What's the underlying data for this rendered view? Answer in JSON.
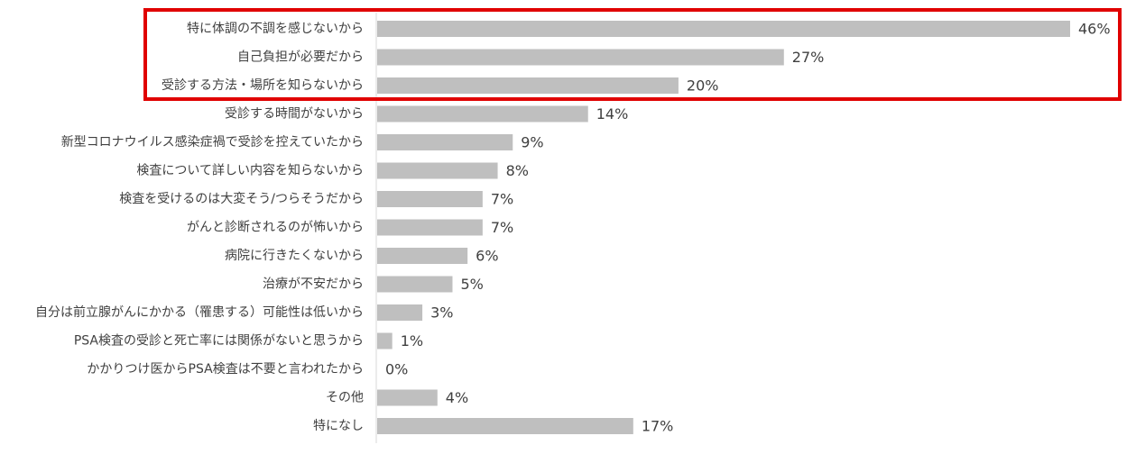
{
  "chart_data": {
    "type": "bar",
    "orientation": "horizontal",
    "categories": [
      "特に体調の不調を感じないから",
      "自己負担が必要だから",
      "受診する方法・場所を知らないから",
      "受診する時間がないから",
      "新型コロナウイルス感染症禍で受診を控えていたから",
      "検査について詳しい内容を知らないから",
      "検査を受けるのは大変そう/つらそうだから",
      "がんと診断されるのが怖いから",
      "病院に行きたくないから",
      "治療が不安だから",
      "自分は前立腺がんにかかる（罹患する）可能性は低いから",
      "PSA検査の受診と死亡率には関係がないと思うから",
      "かかりつけ医からPSA検査は不要と言われたから",
      "その他",
      "特になし"
    ],
    "values": [
      46,
      27,
      20,
      14,
      9,
      8,
      7,
      7,
      6,
      5,
      3,
      1,
      0,
      4,
      17
    ],
    "value_labels": [
      "46%",
      "27%",
      "20%",
      "14%",
      "9%",
      "8%",
      "7%",
      "7%",
      "6%",
      "5%",
      "3%",
      "1%",
      "0%",
      "4%",
      "17%"
    ],
    "color": "#bfbfbf"
  }
}
